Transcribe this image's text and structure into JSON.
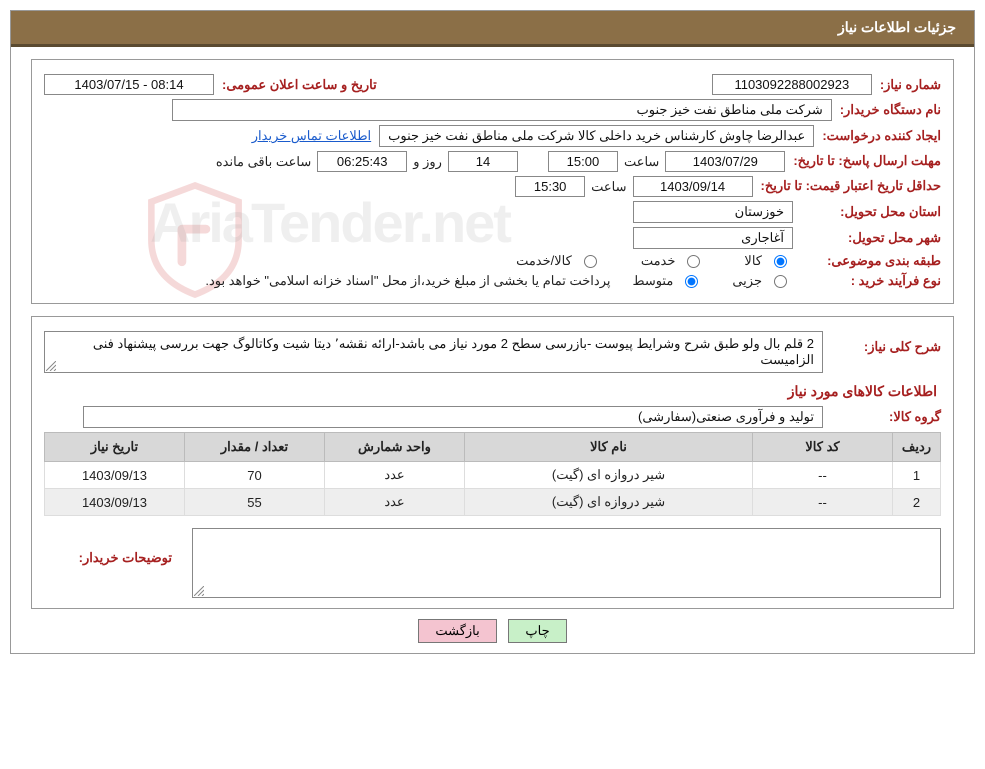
{
  "header": {
    "title": "جزئیات اطلاعات نیاز"
  },
  "fields": {
    "request_no": {
      "label": "شماره نیاز:",
      "value": "1103092288002923"
    },
    "announce": {
      "label": "تاریخ و ساعت اعلان عمومی:",
      "value": "1403/07/15 - 08:14"
    },
    "buyer_org": {
      "label": "نام دستگاه خریدار:",
      "value": "شرکت ملی مناطق نفت خیز جنوب"
    },
    "creator": {
      "label": "ایجاد کننده درخواست:",
      "value": "عبدالرضا چاوش  کارشناس خرید داخلی کالا شرکت ملی مناطق نفت خیز جنوب",
      "link": "اطلاعات تماس خریدار"
    },
    "deadline": {
      "label_line1": "مهلت ارسال پاسخ:",
      "label_line2": "تا تاریخ:",
      "date": "1403/07/29",
      "time_label": "ساعت",
      "time": "15:00",
      "days": "14",
      "days_label": "روز و",
      "countdown": "06:25:43",
      "countdown_label": "ساعت باقی مانده"
    },
    "validity": {
      "label_line1": "حداقل تاریخ اعتبار قیمت:",
      "label_line2": "تا تاریخ:",
      "date": "1403/09/14",
      "time_label": "ساعت",
      "time": "15:30"
    },
    "province": {
      "label": "استان محل تحویل:",
      "value": "خوزستان"
    },
    "city": {
      "label": "شهر محل تحویل:",
      "value": "آغاجاری"
    },
    "category": {
      "label": "طبقه بندی موضوعی:",
      "opt_goods": "کالا",
      "opt_service": "خدمت",
      "opt_both": "کالا/خدمت",
      "selected": "goods"
    },
    "process_type": {
      "label": "نوع فرآیند خرید :",
      "opt_partial": "جزیی",
      "opt_medium": "متوسط",
      "selected": "medium",
      "note": "پرداخت تمام یا بخشی از مبلغ خرید،از محل \"اسناد خزانه اسلامی\" خواهد بود."
    }
  },
  "desc": {
    "label": "شرح کلی نیاز:",
    "value": "2 قلم بال ولو طبق شرح وشرایط پیوست -بازرسی سطح 2 مورد نیاز می باشد-ارائه نقشه٬ دیتا شیت وکاتالوگ جهت بررسی پیشنهاد فنی الزامیست"
  },
  "items": {
    "section_title": "اطلاعات کالاهای مورد نیاز",
    "group_label": "گروه کالا:",
    "group_value": "تولید و فرآوری صنعتی(سفارشی)",
    "columns": {
      "row": "ردیف",
      "code": "کد کالا",
      "name": "نام کالا",
      "unit": "واحد شمارش",
      "qty": "تعداد / مقدار",
      "date": "تاریخ نیاز"
    },
    "col_widths": {
      "row": "48px",
      "code": "140px",
      "name": "auto",
      "unit": "140px",
      "qty": "140px",
      "date": "140px"
    },
    "rows": [
      {
        "row": "1",
        "code": "--",
        "name": "شیر دروازه ای (گیت)",
        "unit": "عدد",
        "qty": "70",
        "date": "1403/09/13"
      },
      {
        "row": "2",
        "code": "--",
        "name": "شیر دروازه ای (گیت)",
        "unit": "عدد",
        "qty": "55",
        "date": "1403/09/13"
      }
    ]
  },
  "buyer_notes": {
    "label": "توضیحات خریدار:",
    "value": ""
  },
  "buttons": {
    "print": "چاپ",
    "back": "بازگشت"
  },
  "watermark": {
    "text": "AriaTender.net"
  },
  "style": {
    "header_bg": "#8b6f47",
    "header_border": "#5a4a30",
    "label_color": "#a62020",
    "link_color": "#1a5bcc",
    "table_header_bg": "#d8d8d8",
    "table_row_alt_bg": "#eeeeee",
    "btn_print_bg": "#c8f0c8",
    "btn_back_bg": "#f4c4d0",
    "border_color": "#888888",
    "font_size_base": 13,
    "font_size_header": 14
  }
}
